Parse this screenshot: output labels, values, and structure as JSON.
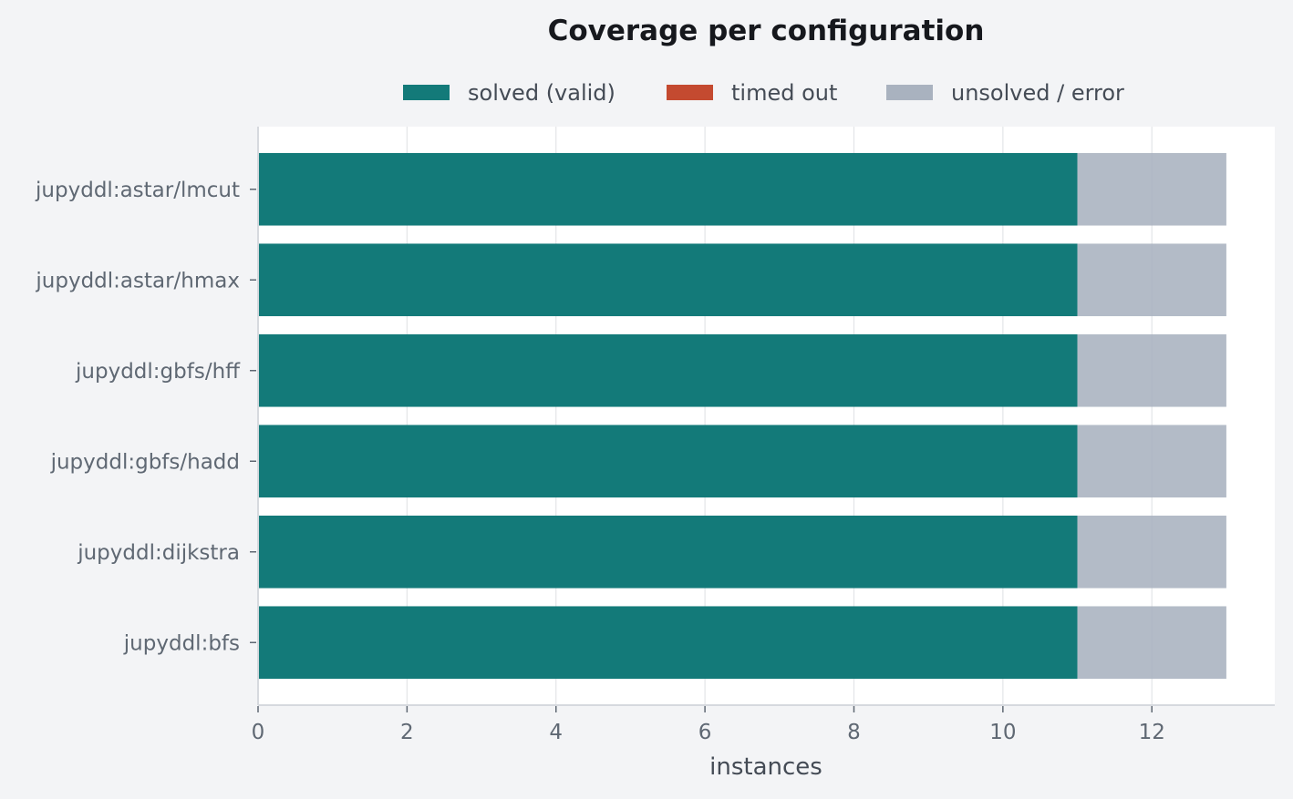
{
  "chart_data": {
    "type": "bar",
    "orientation": "horizontal",
    "stacked": true,
    "title": "Coverage per configuration",
    "xlabel": "instances",
    "ylabel": "",
    "categories": [
      "jupyddl:astar/lmcut",
      "jupyddl:astar/hmax",
      "jupyddl:gbfs/hff",
      "jupyddl:gbfs/hadd",
      "jupyddl:dijkstra",
      "jupyddl:bfs"
    ],
    "series": [
      {
        "name": "solved (valid)",
        "color": "#137a79",
        "values": [
          11,
          11,
          11,
          11,
          11,
          11
        ]
      },
      {
        "name": "timed out",
        "color": "#c44a30",
        "values": [
          0,
          0,
          0,
          0,
          0,
          0
        ]
      },
      {
        "name": "unsolved / error",
        "color": "#a9b2bf",
        "values": [
          2,
          2,
          2,
          2,
          2,
          2
        ]
      }
    ],
    "xlim": [
      0,
      13.65
    ],
    "xticks": [
      0,
      2,
      4,
      6,
      8,
      10,
      12
    ],
    "grid": "vertical",
    "legend": "top-center"
  }
}
